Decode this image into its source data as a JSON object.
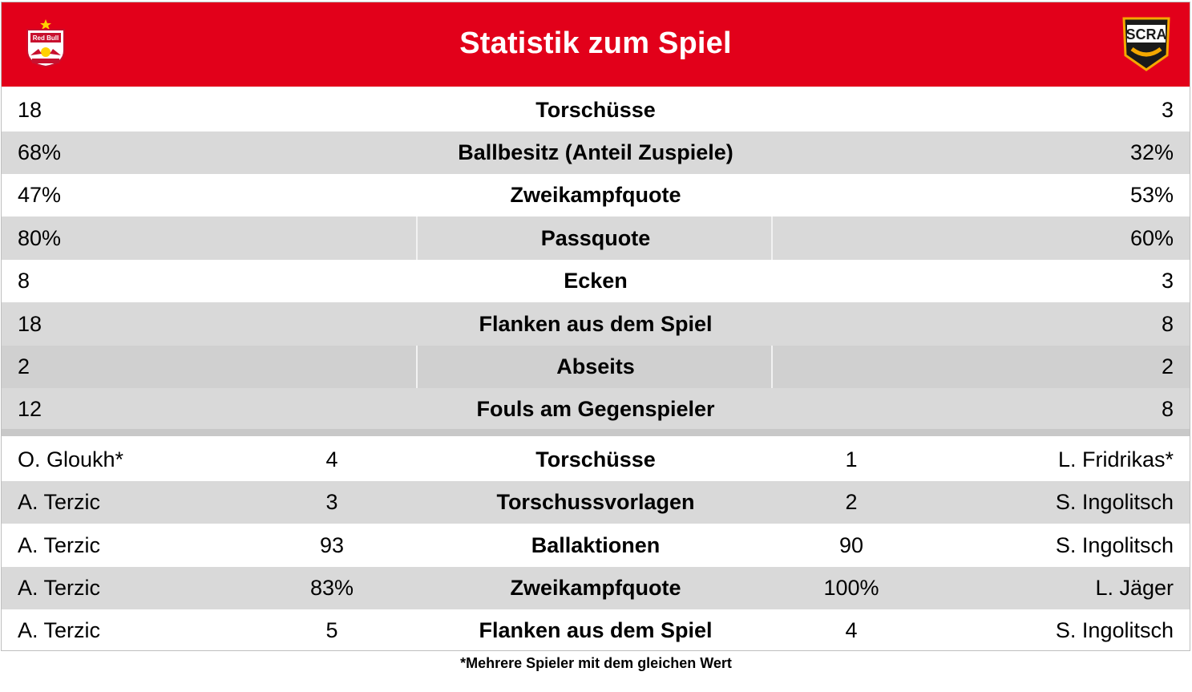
{
  "header": {
    "title": "Statistik zum Spiel",
    "left_logo_text": "Red Bull",
    "right_logo_text": "SCRA",
    "brand_color": "#e2001a"
  },
  "team_stats": [
    {
      "left": "18",
      "label": "Torschüsse",
      "right": "3"
    },
    {
      "left": "68%",
      "label": "Ballbesitz (Anteil Zuspiele)",
      "right": "32%"
    },
    {
      "left": "47%",
      "label": "Zweikampfquote",
      "right": "53%"
    },
    {
      "left": "80%",
      "label": "Passquote",
      "right": "60%"
    },
    {
      "left": "8",
      "label": "Ecken",
      "right": "3"
    },
    {
      "left": "18",
      "label": "Flanken aus dem Spiel",
      "right": "8"
    },
    {
      "left": "2",
      "label": "Abseits",
      "right": "2"
    },
    {
      "left": "12",
      "label": "Fouls am Gegenspieler",
      "right": "8"
    }
  ],
  "player_stats": [
    {
      "left_player": "O. Gloukh*",
      "left_value": "4",
      "label": "Torschüsse",
      "right_value": "1",
      "right_player": "L. Fridrikas*"
    },
    {
      "left_player": "A. Terzic",
      "left_value": "3",
      "label": "Torschussvorlagen",
      "right_value": "2",
      "right_player": "S. Ingolitsch"
    },
    {
      "left_player": "A. Terzic",
      "left_value": "93",
      "label": "Ballaktionen",
      "right_value": "90",
      "right_player": "S. Ingolitsch"
    },
    {
      "left_player": "A. Terzic",
      "left_value": "83%",
      "label": "Zweikampfquote",
      "right_value": "100%",
      "right_player": "L. Jäger"
    },
    {
      "left_player": "A. Terzic",
      "left_value": "5",
      "label": "Flanken aus dem Spiel",
      "right_value": "4",
      "right_player": "S. Ingolitsch"
    }
  ],
  "footnote": "*Mehrere Spieler mit dem gleichen Wert"
}
